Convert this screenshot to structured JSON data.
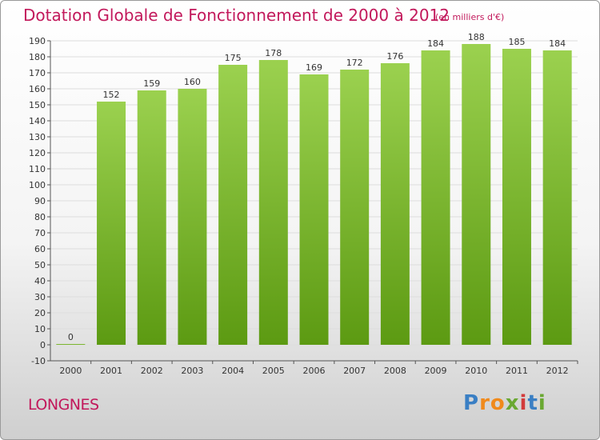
{
  "title": "Dotation Globale de Fonctionnement de 2000 à 2012",
  "subtitle": "(en milliers d'€)",
  "commune": "LONGNES",
  "logo": {
    "text": "Proxiti",
    "letters": [
      "P",
      "r",
      "o",
      "x",
      "i",
      "t",
      "i"
    ],
    "colors": [
      "#3a7fc4",
      "#f08a1c",
      "#f08a1c",
      "#6aa832",
      "#d23b3b",
      "#3a7fc4",
      "#6aa832"
    ]
  },
  "chart_data": {
    "type": "bar",
    "categories": [
      "2000",
      "2001",
      "2002",
      "2003",
      "2004",
      "2005",
      "2006",
      "2007",
      "2008",
      "2009",
      "2010",
      "2011",
      "2012"
    ],
    "values": [
      0,
      152,
      159,
      160,
      175,
      178,
      169,
      172,
      176,
      184,
      188,
      185,
      184
    ],
    "ylim": [
      -10,
      190
    ],
    "yticks": [
      -10,
      0,
      10,
      20,
      30,
      40,
      50,
      60,
      70,
      80,
      90,
      100,
      110,
      120,
      130,
      140,
      150,
      160,
      170,
      180,
      190
    ],
    "grid": true,
    "bar_color_top": "#9bd14f",
    "bar_color_bottom": "#5c9a12"
  }
}
